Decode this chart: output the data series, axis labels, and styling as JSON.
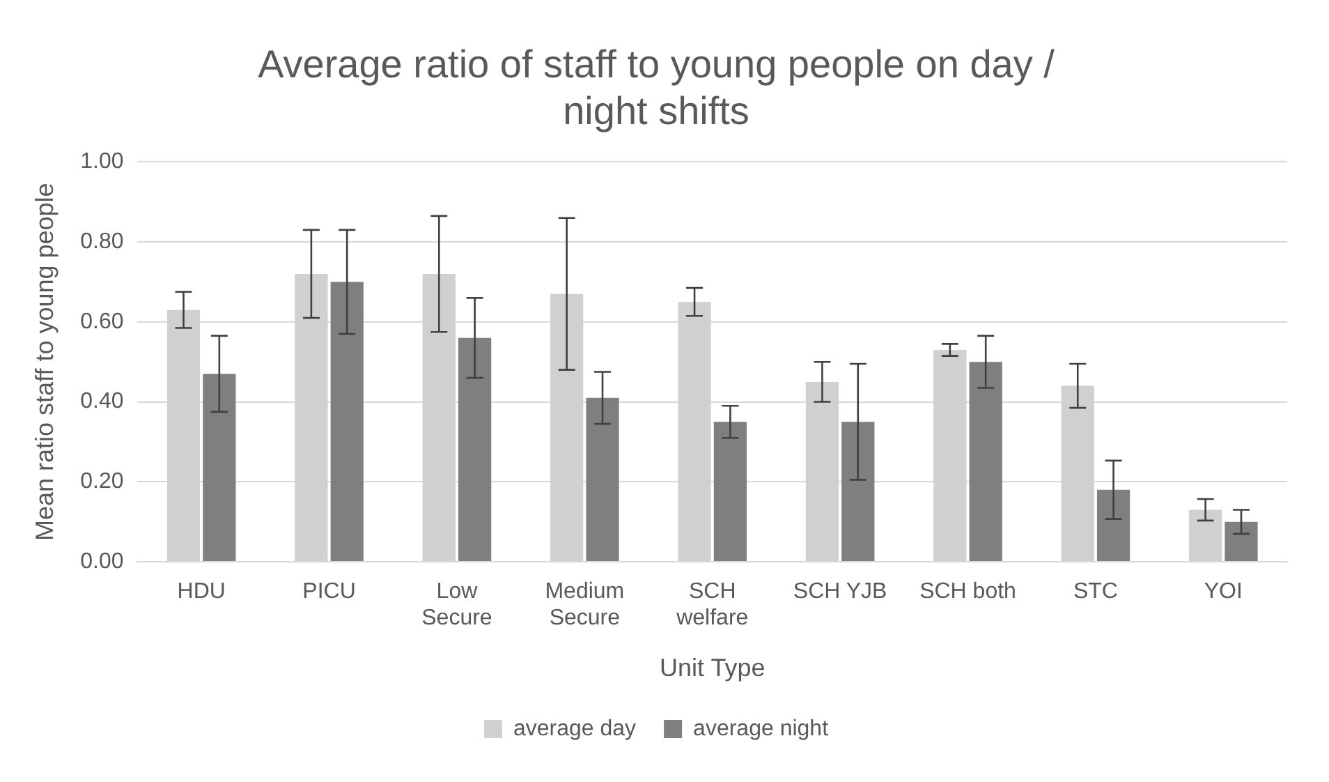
{
  "chart_data": {
    "type": "bar",
    "title": "Average ratio of staff to young people on day / night shifts",
    "xlabel": "Unit Type",
    "ylabel": "Mean ratio staff to young people",
    "categories": [
      "HDU",
      "PICU",
      "Low Secure",
      "Medium Secure",
      "SCH welfare",
      "SCH YJB",
      "SCH both",
      "STC",
      "YOI"
    ],
    "series": [
      {
        "name": "average day",
        "color": "#d0d0d0",
        "values": [
          0.63,
          0.72,
          0.72,
          0.67,
          0.65,
          0.45,
          0.53,
          0.44,
          0.13
        ],
        "errors": [
          0.045,
          0.11,
          0.145,
          0.19,
          0.035,
          0.05,
          0.015,
          0.055,
          0.027
        ]
      },
      {
        "name": "average night",
        "color": "#7f7f7f",
        "values": [
          0.47,
          0.7,
          0.56,
          0.41,
          0.35,
          0.35,
          0.5,
          0.18,
          0.1
        ],
        "errors": [
          0.095,
          0.13,
          0.1,
          0.065,
          0.04,
          0.145,
          0.065,
          0.073,
          0.03
        ]
      }
    ],
    "ylim": [
      0,
      1
    ],
    "yticks": [
      {
        "value": 0,
        "label": "0.00"
      },
      {
        "value": 0.2,
        "label": "0.20"
      },
      {
        "value": 0.4,
        "label": "0.40"
      },
      {
        "value": 0.6,
        "label": "0.60"
      },
      {
        "value": 0.8,
        "label": "0.80"
      },
      {
        "value": 1,
        "label": "1.00"
      }
    ],
    "grid": "y",
    "legend": "bottom"
  }
}
